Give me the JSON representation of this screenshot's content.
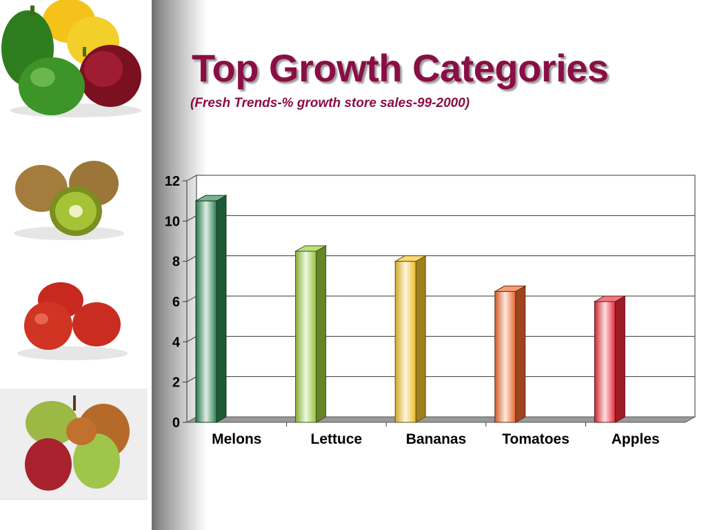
{
  "slide": {
    "title": "Top Growth Categories",
    "subtitle": "(Fresh Trends-% growth store sales-99-2000)"
  },
  "sidebar": {
    "images": [
      "peppers",
      "kiwi fruit",
      "tomatoes",
      "pears"
    ]
  },
  "chart_data": {
    "type": "bar",
    "style": "3d",
    "categories": [
      "Melons",
      "Lettuce",
      "Bananas",
      "Tomatoes",
      "Apples"
    ],
    "values": [
      11,
      8.5,
      8,
      6.5,
      6
    ],
    "yticks": [
      "0",
      "2",
      "4",
      "6",
      "8",
      "10",
      "12"
    ],
    "ylim": [
      0,
      12
    ],
    "grid": true,
    "legend": "none",
    "colors": [
      "#2f8a55",
      "#9ccc3b",
      "#f5c52a",
      "#f26a2e",
      "#ee2d3a"
    ]
  }
}
